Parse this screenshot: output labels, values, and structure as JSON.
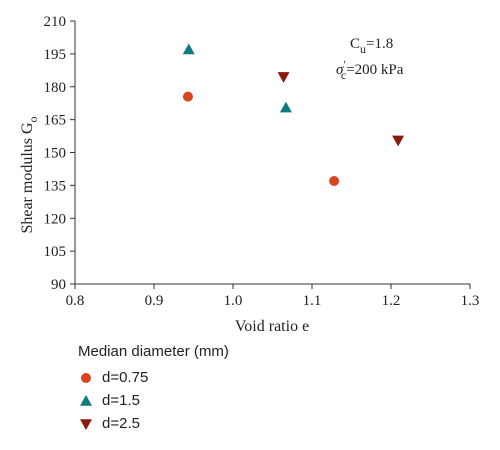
{
  "chart_data": {
    "type": "scatter",
    "xlabel": "Void ratio e",
    "ylabel_main": "Shear modulus G",
    "ylabel_sub": "o",
    "xlim": [
      0.8,
      1.3
    ],
    "ylim": [
      90,
      210
    ],
    "xticks": [
      "0.8",
      "0.9",
      "1.0",
      "1.1",
      "1.2",
      "1.3"
    ],
    "yticks": [
      "90",
      "105",
      "120",
      "135",
      "150",
      "165",
      "180",
      "195",
      "210"
    ],
    "grid": false,
    "annotation": {
      "cu_main": "C",
      "cu_sub": "u",
      "cu_value": "=1.8",
      "sigma_main": "σ",
      "sigma_sup": "′",
      "sigma_sub": "c",
      "sigma_value": "=200 kPa"
    },
    "legend": {
      "title": "Median diameter (mm)",
      "placement": "bottom-left"
    },
    "series": [
      {
        "name": "d=0.75",
        "marker": "circle",
        "color": "#d9441f",
        "points": [
          {
            "x": 0.943,
            "y": 175.5
          },
          {
            "x": 1.128,
            "y": 137
          }
        ]
      },
      {
        "name": "d=1.5",
        "marker": "triangle-up",
        "color": "#0f7b7f",
        "points": [
          {
            "x": 0.944,
            "y": 197
          },
          {
            "x": 1.067,
            "y": 170.5
          }
        ]
      },
      {
        "name": "d=2.5",
        "marker": "triangle-down",
        "color": "#8b1a0e",
        "points": [
          {
            "x": 1.064,
            "y": 184.5
          },
          {
            "x": 1.209,
            "y": 155.5
          }
        ]
      }
    ]
  }
}
